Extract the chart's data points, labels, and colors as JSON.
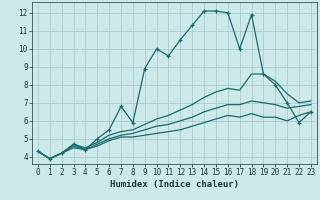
{
  "xlabel": "Humidex (Indice chaleur)",
  "bg_color": "#cce8e8",
  "grid_color": "#aacccc",
  "line_color": "#1a6b6b",
  "xlim": [
    -0.5,
    23.5
  ],
  "ylim": [
    3.6,
    12.6
  ],
  "xticks": [
    0,
    1,
    2,
    3,
    4,
    5,
    6,
    7,
    8,
    9,
    10,
    11,
    12,
    13,
    14,
    15,
    16,
    17,
    18,
    19,
    20,
    21,
    22,
    23
  ],
  "yticks": [
    4,
    5,
    6,
    7,
    8,
    9,
    10,
    11,
    12
  ],
  "series": [
    {
      "y": [
        4.3,
        3.9,
        4.2,
        4.5,
        4.4,
        4.6,
        4.9,
        5.1,
        5.1,
        5.2,
        5.3,
        5.4,
        5.5,
        5.7,
        5.9,
        6.1,
        6.3,
        6.2,
        6.4,
        6.2,
        6.2,
        6.0,
        6.3,
        6.5
      ],
      "marker": false,
      "lw": 0.9
    },
    {
      "y": [
        4.3,
        3.9,
        4.2,
        4.6,
        4.4,
        4.7,
        5.0,
        5.2,
        5.3,
        5.5,
        5.7,
        5.8,
        6.0,
        6.2,
        6.5,
        6.7,
        6.9,
        6.9,
        7.1,
        7.0,
        6.9,
        6.7,
        6.8,
        6.9
      ],
      "marker": false,
      "lw": 0.9
    },
    {
      "y": [
        4.3,
        3.9,
        4.2,
        4.7,
        4.5,
        4.8,
        5.2,
        5.4,
        5.5,
        5.8,
        6.1,
        6.3,
        6.6,
        6.9,
        7.3,
        7.6,
        7.8,
        7.7,
        8.6,
        8.6,
        8.2,
        7.5,
        7.0,
        7.1
      ],
      "marker": false,
      "lw": 0.9
    },
    {
      "y": [
        4.3,
        3.9,
        4.2,
        4.7,
        4.4,
        5.0,
        5.5,
        6.8,
        5.9,
        8.9,
        10.0,
        9.6,
        10.5,
        11.3,
        12.1,
        12.1,
        12.0,
        10.0,
        11.9,
        8.6,
        8.0,
        7.0,
        5.9,
        6.5
      ],
      "marker": true,
      "lw": 0.9
    }
  ]
}
